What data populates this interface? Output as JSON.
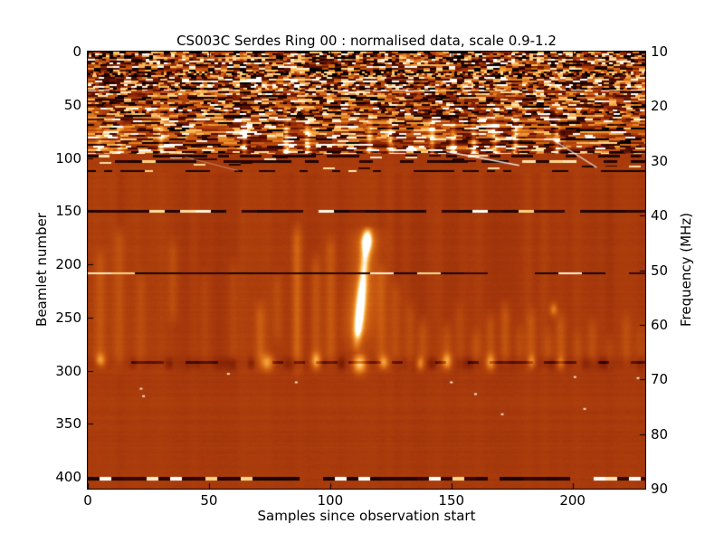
{
  "chart_data": {
    "type": "heatmap",
    "title": "CS003C Serdes Ring 00 : normalised data, scale 0.9-1.2",
    "xlabel": "Samples since observation start",
    "ylabel": "Beamlet number",
    "ylabel_right": "Frequency (MHz)",
    "x_range": [
      0,
      230
    ],
    "x_ticks": [
      0,
      50,
      100,
      150,
      200
    ],
    "y_left_range": [
      0,
      411
    ],
    "y_left_ticks": [
      0,
      50,
      100,
      150,
      200,
      250,
      300,
      350,
      400
    ],
    "y_right_range": [
      10,
      90
    ],
    "y_right_ticks": [
      10,
      20,
      30,
      40,
      50,
      60,
      70,
      80,
      90
    ],
    "grid": false,
    "legend": "none",
    "color_scale": {
      "min": 0.9,
      "max": 1.2,
      "stops": [
        [
          0.0,
          [
            0,
            0,
            0
          ]
        ],
        [
          0.15,
          [
            62,
            8,
            0
          ]
        ],
        [
          0.3,
          [
            128,
            30,
            4
          ]
        ],
        [
          0.43,
          [
            168,
            58,
            12
          ]
        ],
        [
          0.56,
          [
            198,
            88,
            16
          ]
        ],
        [
          0.68,
          [
            226,
            126,
            32
          ]
        ],
        [
          0.8,
          [
            246,
            170,
            70
          ]
        ],
        [
          0.9,
          [
            255,
            216,
            140
          ]
        ],
        [
          1.0,
          [
            255,
            255,
            255
          ]
        ]
      ]
    },
    "annotations": {
      "noise_band": "broadband RFI speckle over beamlets 0-96 (10-29 MHz)",
      "main_feature": "bright transient streak near sample 112, beamlets ~165-280",
      "smudge_band": "dark patchy band with bright blobs around beamlet 293 (~67 MHz)",
      "bad_beamlet_lines": [
        98,
        103,
        112,
        150,
        208,
        292,
        401
      ]
    },
    "render": {
      "seed": 20131,
      "base_level": 0.435,
      "noise_layers": [
        {
          "b0": 0,
          "b1": 36,
          "cw0": 3,
          "cw1": 9,
          "pb": 0.3,
          "pw": 0.22,
          "po": 0.2
        },
        {
          "b0": 36,
          "b1": 64,
          "cw0": 4,
          "cw1": 13,
          "pb": 0.22,
          "pw": 0.16,
          "po": 0.27
        },
        {
          "b0": 64,
          "b1": 88,
          "cw0": 7,
          "cw1": 22,
          "pb": 0.15,
          "pw": 0.13,
          "po": 0.27
        },
        {
          "b0": 88,
          "b1": 96,
          "cw0": 5,
          "cw1": 16,
          "pb": 0.35,
          "pw": 0.18,
          "po": 0.14
        }
      ],
      "h_lines": [
        {
          "b": 98,
          "dl": 12,
          "duty": 0.55,
          "wp": 0.12,
          "th": 1.2
        },
        {
          "b": 103,
          "dl": 15,
          "duty": 0.6,
          "wp": 0.1,
          "th": 1.2
        },
        {
          "b": 112,
          "dl": 9,
          "duty": 0.4,
          "wp": 0.05,
          "th": 1.0
        },
        {
          "b": 150,
          "dl": 17,
          "duty": 0.85,
          "wp": 0.13,
          "th": 1.6
        },
        {
          "b": 208,
          "dl": 26,
          "duty": 0.9,
          "wp": 0.09,
          "th": 1.2
        },
        {
          "b": 292,
          "dl": 12,
          "duty": 0.45,
          "wp": 0.0,
          "th": 1.2,
          "sub": true,
          "str": 0.2
        },
        {
          "b": 401,
          "dl": 13,
          "duty": 0.9,
          "wp": 0.28,
          "th": 1.8
        }
      ],
      "main_streak": {
        "s_top": 115.5,
        "s_bottom": 110.5,
        "b0": 163,
        "b1": 282,
        "core_sigma": 3.5,
        "glow_sigma": 11,
        "core_amp": 0.62,
        "glow_amp": 0.22,
        "profile": [
          [
            163,
            0.0
          ],
          [
            170,
            0.45
          ],
          [
            178,
            0.85
          ],
          [
            186,
            0.7
          ],
          [
            196,
            0.62
          ],
          [
            210,
            0.66
          ],
          [
            222,
            0.85
          ],
          [
            238,
            1.0
          ],
          [
            252,
            0.95
          ],
          [
            262,
            0.8
          ],
          [
            270,
            0.45
          ],
          [
            277,
            0.22
          ],
          [
            282,
            0.05
          ]
        ]
      },
      "streaks": [
        [
          5,
          180,
          300,
          0.18
        ],
        [
          13,
          160,
          305,
          0.22
        ],
        [
          22,
          200,
          300,
          0.12
        ],
        [
          35,
          170,
          260,
          0.15
        ],
        [
          48,
          200,
          300,
          0.1
        ],
        [
          60,
          190,
          300,
          0.12
        ],
        [
          71,
          230,
          303,
          0.25
        ],
        [
          78,
          200,
          280,
          0.15
        ],
        [
          86,
          158,
          308,
          0.32
        ],
        [
          94,
          185,
          303,
          0.22
        ],
        [
          100,
          168,
          300,
          0.22
        ],
        [
          121,
          195,
          303,
          0.25
        ],
        [
          127,
          210,
          300,
          0.18
        ],
        [
          133,
          230,
          300,
          0.15
        ],
        [
          138,
          245,
          303,
          0.22
        ],
        [
          148,
          250,
          303,
          0.2
        ],
        [
          153,
          230,
          300,
          0.12
        ],
        [
          160,
          255,
          303,
          0.18
        ],
        [
          166,
          240,
          303,
          0.22
        ],
        [
          172,
          230,
          300,
          0.25
        ],
        [
          178,
          250,
          300,
          0.15
        ],
        [
          183,
          235,
          300,
          0.2
        ],
        [
          190,
          255,
          300,
          0.15
        ],
        [
          195,
          240,
          300,
          0.22
        ],
        [
          202,
          255,
          300,
          0.12
        ],
        [
          208,
          245,
          300,
          0.18
        ],
        [
          215,
          260,
          300,
          0.12
        ],
        [
          222,
          240,
          300,
          0.15
        ],
        [
          228,
          250,
          300,
          0.12
        ]
      ],
      "blobs": [
        [
          5,
          290,
          4,
          5,
          0.5
        ],
        [
          74,
          292,
          5,
          6,
          0.55
        ],
        [
          94,
          291,
          4,
          6,
          0.6
        ],
        [
          112,
          293,
          5,
          7,
          0.85
        ],
        [
          122,
          292,
          4,
          5,
          0.5
        ],
        [
          137,
          293,
          3,
          5,
          0.45
        ],
        [
          148,
          291,
          4,
          6,
          0.55
        ],
        [
          166,
          292,
          4,
          6,
          0.5
        ],
        [
          183,
          291,
          3,
          5,
          0.4
        ],
        [
          195,
          292,
          3,
          5,
          0.35
        ],
        [
          115,
          178,
          4,
          8,
          0.45
        ],
        [
          192,
          242,
          3,
          5,
          0.4
        ]
      ],
      "specks": [
        [
          22,
          317
        ],
        [
          23,
          324
        ],
        [
          86,
          311
        ],
        [
          160,
          322
        ],
        [
          171,
          341
        ],
        [
          205,
          336
        ],
        [
          150,
          311
        ],
        [
          201,
          306
        ],
        [
          227,
          307
        ],
        [
          58,
          303
        ]
      ],
      "diagonals": [
        [
          148,
          94,
          178,
          107,
          0.85
        ],
        [
          192,
          83,
          210,
          109,
          0.7
        ],
        [
          40,
          99,
          62,
          112,
          0.3
        ]
      ]
    }
  }
}
